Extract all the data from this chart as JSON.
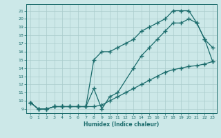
{
  "xlabel": "Humidex (Indice chaleur)",
  "bg_color": "#cce8e8",
  "line_color": "#1a6b6b",
  "grid_color": "#b8d8d8",
  "xlim": [
    -0.5,
    23.5
  ],
  "ylim": [
    8.5,
    21.8
  ],
  "xticks": [
    0,
    1,
    2,
    3,
    4,
    5,
    6,
    7,
    8,
    9,
    10,
    11,
    12,
    13,
    14,
    15,
    16,
    17,
    18,
    19,
    20,
    21,
    22,
    23
  ],
  "yticks": [
    9,
    10,
    11,
    12,
    13,
    14,
    15,
    16,
    17,
    18,
    19,
    20,
    21
  ],
  "series": [
    {
      "x": [
        0,
        1,
        2,
        3,
        4,
        5,
        6,
        7,
        8,
        9,
        10,
        11,
        12,
        13,
        14,
        15,
        16,
        17,
        18,
        19,
        20,
        21,
        22,
        23
      ],
      "y": [
        9.8,
        9.0,
        9.0,
        9.3,
        9.3,
        9.3,
        9.3,
        9.3,
        15.0,
        16.0,
        16.0,
        16.5,
        17.0,
        17.5,
        18.5,
        19.0,
        19.5,
        20.0,
        21.0,
        21.0,
        21.0,
        19.5,
        17.5,
        16.5
      ]
    },
    {
      "x": [
        0,
        1,
        2,
        3,
        4,
        5,
        6,
        7,
        8,
        9,
        10,
        11,
        13,
        14,
        15,
        16,
        17,
        18,
        19,
        20,
        21,
        22,
        23
      ],
      "y": [
        9.8,
        9.0,
        9.0,
        9.3,
        9.3,
        9.3,
        9.3,
        9.3,
        11.5,
        9.0,
        10.5,
        11.0,
        14.0,
        15.5,
        16.5,
        17.5,
        18.5,
        19.5,
        19.5,
        20.0,
        19.5,
        17.5,
        14.8
      ]
    },
    {
      "x": [
        0,
        1,
        2,
        3,
        4,
        5,
        6,
        7,
        8,
        9,
        10,
        11,
        12,
        13,
        14,
        15,
        16,
        17,
        18,
        19,
        20,
        21,
        22,
        23
      ],
      "y": [
        9.8,
        9.0,
        9.0,
        9.3,
        9.3,
        9.3,
        9.3,
        9.3,
        9.3,
        9.5,
        10.0,
        10.5,
        11.0,
        11.5,
        12.0,
        12.5,
        13.0,
        13.5,
        13.8,
        14.0,
        14.2,
        14.3,
        14.5,
        14.8
      ]
    }
  ]
}
